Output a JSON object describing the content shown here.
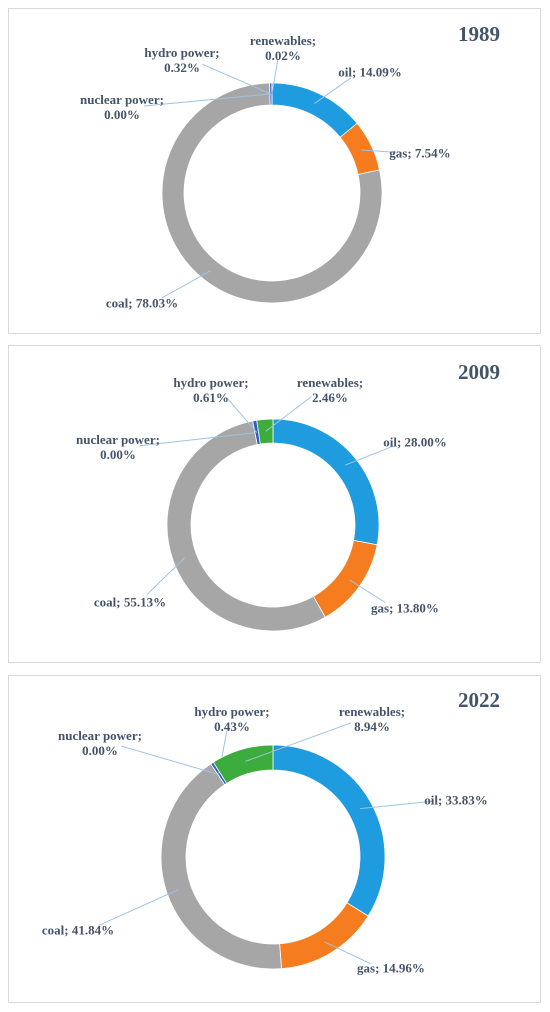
{
  "chart_data": [
    {
      "type": "pie",
      "title": "1989",
      "values": [
        14.09,
        7.54,
        78.03,
        0.0,
        0.32,
        0.02
      ],
      "value_labels": [
        "oil; 14.09%",
        "gas; 7.54%",
        "coal; 78.03%",
        "nuclear power; 0.00%",
        "hydro power; 0.32%",
        "renewables; 0.02%"
      ],
      "colors": [
        "#1f9ce0",
        "#f57c1f",
        "#a6a6a6",
        "#7f7f7f",
        "#2f5fc4",
        "#3cad3c"
      ]
    },
    {
      "type": "pie",
      "title": "2009",
      "values": [
        28.0,
        13.8,
        55.13,
        0.0,
        0.61,
        2.46
      ],
      "value_labels": [
        "oil; 28.00%",
        "gas; 13.80%",
        "coal; 55.13%",
        "nuclear power; 0.00%",
        "hydro power; 0.61%",
        "renewables; 2.46%"
      ],
      "colors": [
        "#1f9ce0",
        "#f57c1f",
        "#a6a6a6",
        "#7f7f7f",
        "#2f5fc4",
        "#3cad3c"
      ]
    },
    {
      "type": "pie",
      "title": "2022",
      "values": [
        33.83,
        14.96,
        41.84,
        0.0,
        0.43,
        8.94
      ],
      "value_labels": [
        "oil; 33.83%",
        "gas; 14.96%",
        "coal; 41.84%",
        "nuclear power; 0.00%",
        "hydro power; 0.43%",
        "renewables; 8.94%"
      ],
      "colors": [
        "#1f9ce0",
        "#f57c1f",
        "#a6a6a6",
        "#7f7f7f",
        "#2f5fc4",
        "#3cad3c"
      ]
    }
  ]
}
